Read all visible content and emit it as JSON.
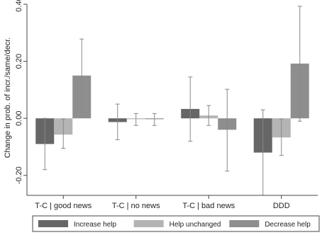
{
  "chart_data": {
    "type": "bar",
    "title": "",
    "xlabel": "",
    "ylabel": "Change in prob. of incr./same/decr.",
    "categories": [
      "T-C | good news",
      "T-C | no news",
      "T-C | bad news",
      "DDD"
    ],
    "ylim": [
      -0.27,
      0.4
    ],
    "yticks": [
      0.4,
      0.2,
      0.0,
      -0.2
    ],
    "ytick_labels": [
      "0.40",
      "0.20",
      "0.00",
      "-0.20"
    ],
    "grid": false,
    "legend_position": "bottom",
    "series": [
      {
        "name": "Increase help",
        "color": "#666666",
        "values": [
          -0.09,
          -0.013,
          0.033,
          -0.12
        ],
        "ci_low": [
          -0.18,
          -0.075,
          -0.08,
          -0.27
        ],
        "ci_high": [
          0.0,
          0.05,
          0.145,
          0.03
        ]
      },
      {
        "name": "Help unchanged",
        "color": "#b4b4b4",
        "values": [
          -0.057,
          -0.003,
          0.01,
          -0.067
        ],
        "ci_low": [
          -0.105,
          -0.025,
          -0.025,
          -0.13
        ],
        "ci_high": [
          -0.002,
          0.017,
          0.045,
          -0.002
        ]
      },
      {
        "name": "Decrease help",
        "color": "#8e8e8e",
        "values": [
          0.15,
          -0.003,
          -0.04,
          0.192
        ],
        "ci_low": [
          0.02,
          -0.025,
          -0.185,
          -0.01
        ],
        "ci_high": [
          0.278,
          0.017,
          0.102,
          0.393
        ]
      }
    ]
  }
}
